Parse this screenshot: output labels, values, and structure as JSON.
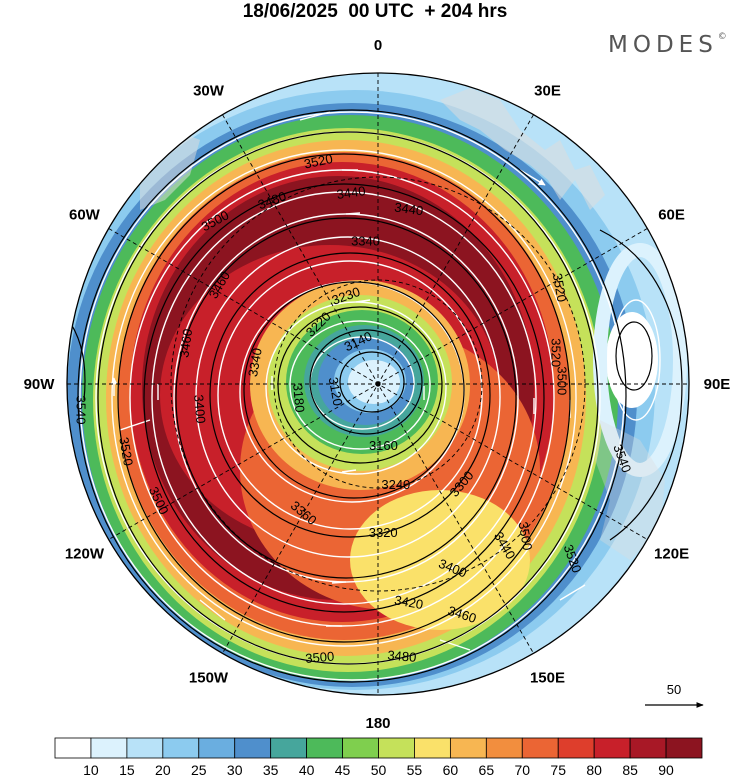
{
  "title": "18/06/2025  00 UTC  + 204 hrs",
  "brand": {
    "name": "MODES",
    "mark": "©"
  },
  "meridian_labels": [
    {
      "text": "0",
      "lon": 0
    },
    {
      "text": "30E",
      "lon": 30
    },
    {
      "text": "60E",
      "lon": 60
    },
    {
      "text": "90E",
      "lon": 90
    },
    {
      "text": "120E",
      "lon": 120
    },
    {
      "text": "150E",
      "lon": 150
    },
    {
      "text": "180",
      "lon": 180
    },
    {
      "text": "150W",
      "lon": -150
    },
    {
      "text": "120W",
      "lon": -120
    },
    {
      "text": "90W",
      "lon": -90
    },
    {
      "text": "60W",
      "lon": -60
    },
    {
      "text": "30W",
      "lon": -30
    }
  ],
  "wind_scale": {
    "label": "50"
  },
  "colorbar": {
    "ticks": [
      "10",
      "15",
      "20",
      "25",
      "30",
      "35",
      "40",
      "45",
      "50",
      "55",
      "60",
      "65",
      "70",
      "75",
      "80",
      "85",
      "90"
    ],
    "colors": [
      "#ffffff",
      "#dcf2fd",
      "#b8e2f8",
      "#8ccbef",
      "#6aaee0",
      "#4f8fcc",
      "#46a69c",
      "#4dba5a",
      "#7fcf4e",
      "#c5e15a",
      "#fae16a",
      "#f7b652",
      "#f28e3e",
      "#eb6534",
      "#de3e2c",
      "#c8202a",
      "#a81826",
      "#8c1420"
    ]
  },
  "contour_labels": [
    {
      "text": "3520",
      "lon": -15,
      "r": 0.74,
      "rot": -12
    },
    {
      "text": "3500",
      "lon": -45,
      "r": 0.74,
      "rot": -28
    },
    {
      "text": "3480",
      "lon": -30,
      "r": 0.68,
      "rot": -20
    },
    {
      "text": "3440",
      "lon": -8,
      "r": 0.62,
      "rot": -8
    },
    {
      "text": "3440",
      "lon": 10,
      "r": 0.57,
      "rot": 8
    },
    {
      "text": "3340",
      "lon": -5,
      "r": 0.46,
      "rot": 0
    },
    {
      "text": "3340",
      "lon": -80,
      "r": 0.4,
      "rot": -80
    },
    {
      "text": "3460",
      "lon": -58,
      "r": 0.6,
      "rot": -60
    },
    {
      "text": "3460",
      "lon": -78,
      "r": 0.63,
      "rot": -82
    },
    {
      "text": "3540",
      "lon": -95,
      "r": 0.96,
      "rot": 90
    },
    {
      "text": "3520",
      "lon": -105,
      "r": 0.84,
      "rot": 80
    },
    {
      "text": "3500",
      "lon": -118,
      "r": 0.8,
      "rot": 65
    },
    {
      "text": "3400",
      "lon": -98,
      "r": 0.58,
      "rot": 85
    },
    {
      "text": "3180",
      "lon": -100,
      "r": 0.26,
      "rot": 85
    },
    {
      "text": "3120",
      "lon": -100,
      "r": 0.14,
      "rot": 80
    },
    {
      "text": "3140",
      "lon": -25,
      "r": 0.15,
      "rot": -25
    },
    {
      "text": "3220",
      "lon": -45,
      "r": 0.27,
      "rot": -45
    },
    {
      "text": "3230",
      "lon": -20,
      "r": 0.3,
      "rot": -20
    },
    {
      "text": "3160",
      "lon": 175,
      "r": 0.2,
      "rot": 0
    },
    {
      "text": "3240",
      "lon": 170,
      "r": 0.33,
      "rot": 0
    },
    {
      "text": "3300",
      "lon": 140,
      "r": 0.42,
      "rot": -50
    },
    {
      "text": "3320",
      "lon": 178,
      "r": 0.48,
      "rot": 0
    },
    {
      "text": "3360",
      "lon": -150,
      "r": 0.48,
      "rot": 40
    },
    {
      "text": "3400",
      "lon": 158,
      "r": 0.64,
      "rot": 22
    },
    {
      "text": "3420",
      "lon": 172,
      "r": 0.71,
      "rot": 10
    },
    {
      "text": "3440",
      "lon": 142,
      "r": 0.66,
      "rot": 60
    },
    {
      "text": "3460",
      "lon": 160,
      "r": 0.79,
      "rot": 18
    },
    {
      "text": "3480",
      "lon": 175,
      "r": 0.88,
      "rot": 5
    },
    {
      "text": "3500",
      "lon": -168,
      "r": 0.9,
      "rot": -5
    },
    {
      "text": "3500",
      "lon": 136,
      "r": 0.68,
      "rot": 80
    },
    {
      "text": "3520",
      "lon": 132,
      "r": 0.84,
      "rot": 70
    },
    {
      "text": "3540",
      "lon": 107,
      "r": 0.82,
      "rot": 70
    },
    {
      "text": "3520",
      "lon": 62,
      "r": 0.66,
      "rot": 80
    },
    {
      "text": "3520",
      "lon": 80,
      "r": 0.58,
      "rot": 90
    },
    {
      "text": "3500",
      "lon": 89,
      "r": 0.59,
      "rot": 90
    }
  ]
}
